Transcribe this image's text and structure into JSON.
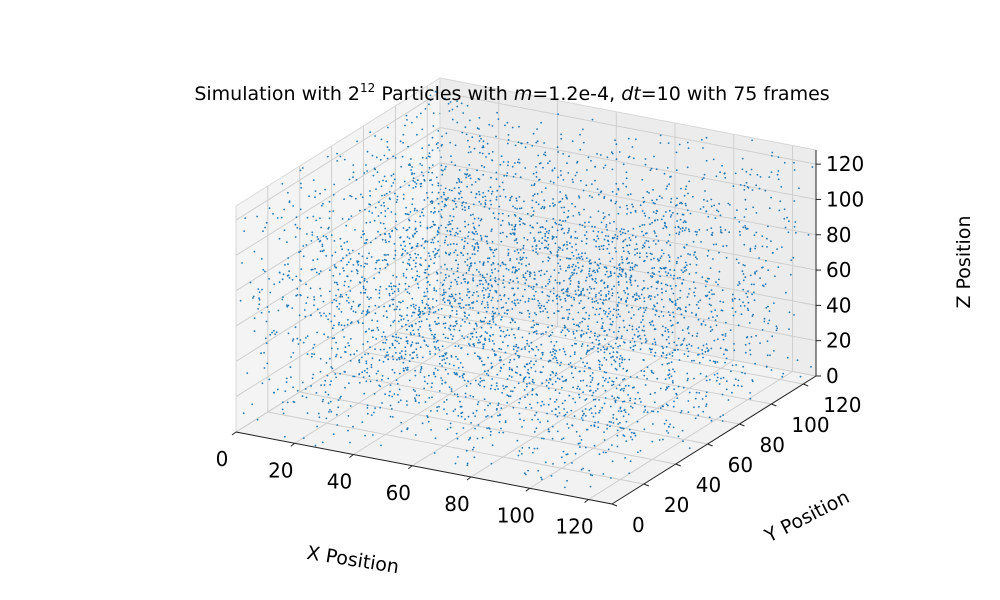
{
  "chart_data": {
    "type": "scatter",
    "projection": "3d",
    "title": {
      "prefix": "Simulation with 2",
      "superscript": "12",
      "part2": " Particles with ",
      "m_symbol": "m",
      "m_value": "=1.2e-4, ",
      "dt_symbol": "dt",
      "dt_value": "=10 with 75 frames"
    },
    "xlabel": "X Position",
    "ylabel": "Y Position",
    "zlabel": "Z Position",
    "xlim": [
      0,
      128
    ],
    "ylim": [
      0,
      128
    ],
    "zlim": [
      0,
      128
    ],
    "x_ticks": [
      "0",
      "20",
      "40",
      "60",
      "80",
      "100",
      "120"
    ],
    "y_ticks": [
      "0",
      "20",
      "40",
      "60",
      "80",
      "100",
      "120"
    ],
    "z_ticks": [
      "0",
      "20",
      "40",
      "60",
      "80",
      "100",
      "120"
    ],
    "x_tick_values": [
      0,
      20,
      40,
      60,
      80,
      100,
      120
    ],
    "y_tick_values": [
      0,
      20,
      40,
      60,
      80,
      100,
      120
    ],
    "z_tick_values": [
      0,
      20,
      40,
      60,
      80,
      100,
      120
    ],
    "grid": true,
    "particle_count": 4096,
    "distribution": "uniform random in [0, 128] on each axis",
    "marker_color": "#1f77b4",
    "pane_color": "#f2f2f2",
    "grid_color": "#cccccc"
  }
}
